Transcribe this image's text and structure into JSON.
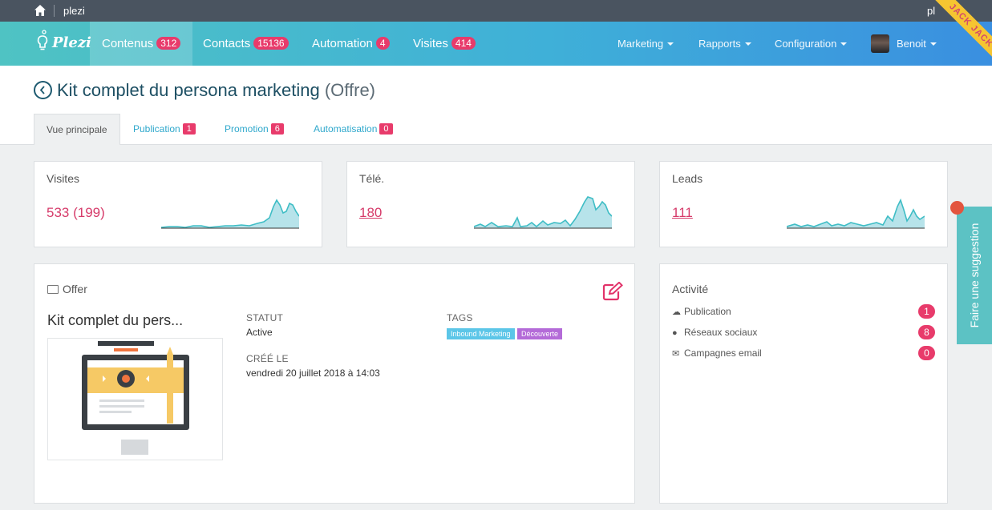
{
  "topbar": {
    "site": "plezi",
    "right_text": "pl"
  },
  "brand": {
    "logo_text": "Plezi"
  },
  "nav": {
    "items": [
      {
        "label": "Contenus",
        "count": "312"
      },
      {
        "label": "Contacts",
        "count": "15136"
      },
      {
        "label": "Automation",
        "count": "4"
      },
      {
        "label": "Visites",
        "count": "414"
      }
    ],
    "menus": [
      "Marketing",
      "Rapports",
      "Configuration"
    ],
    "user": "Benoit",
    "ribbon": "JACK JACK"
  },
  "page": {
    "title": "Kit complet du persona marketing",
    "subtitle": "(Offre)",
    "tabs": [
      {
        "label": "Vue principale"
      },
      {
        "label": "Publication",
        "count": "1"
      },
      {
        "label": "Promotion",
        "count": "6"
      },
      {
        "label": "Automatisation",
        "count": "0"
      }
    ]
  },
  "stats": [
    {
      "label": "Visites",
      "value": "533 (199)"
    },
    {
      "label": "Télé.",
      "value": "180"
    },
    {
      "label": "Leads",
      "value": "111"
    }
  ],
  "offer": {
    "heading": "Offer",
    "name": "Kit complet du pers...",
    "status_label": "STATUT",
    "status_value": "Active",
    "created_label": "CRÉÉ LE",
    "created_value": "vendredi 20 juillet 2018 à 14:03",
    "tags_label": "TAGS",
    "tags": [
      "Inbound Marketing",
      "Découverte"
    ]
  },
  "activity": {
    "title": "Activité",
    "rows": [
      {
        "label": "Publication",
        "count": "1",
        "icon": "cloud-icon"
      },
      {
        "label": "Réseaux sociaux",
        "count": "8",
        "icon": "comment-icon"
      },
      {
        "label": "Campagnes email",
        "count": "0",
        "icon": "envelope-icon"
      }
    ]
  },
  "suggestion": {
    "label": "Faire une suggestion"
  },
  "colors": {
    "accent_pink": "#e83b6b",
    "teal": "#4fc3c3",
    "title_blue": "#1d4f63",
    "link_blue": "#2fa8cc"
  }
}
